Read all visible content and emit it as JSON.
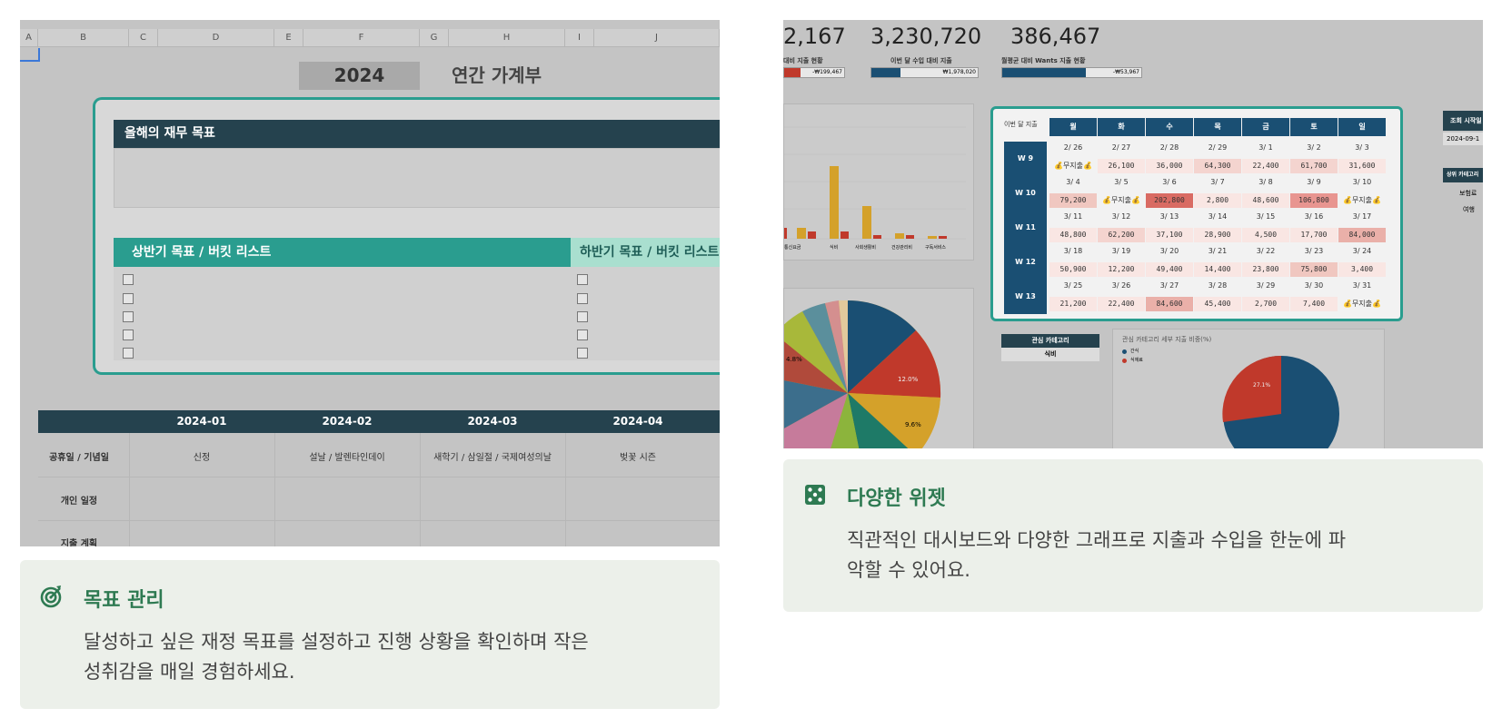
{
  "left_shot": {
    "columns": [
      "A",
      "B",
      "C",
      "D",
      "E",
      "F",
      "G",
      "H",
      "I",
      "J"
    ],
    "year": "2024",
    "book_title": "연간 가계부",
    "goal_header": "올해의 재무 목표",
    "first_half_header": "상반기 목표 / 버킷 리스트",
    "second_half_header": "하반기 목표 / 버킷 리스트",
    "months": [
      "2024-01",
      "2024-02",
      "2024-03",
      "2024-04"
    ],
    "row_labels": [
      "공휴일 / 기념일",
      "개인 일정",
      "지출 계획"
    ],
    "holidays": [
      "신정",
      "설날 / 발렌타인데이",
      "새학기 / 삼일절 / 국제여성의날",
      "벚꽃 시즌"
    ]
  },
  "left_caption": {
    "icon": "target-icon",
    "title": "목표 관리",
    "desc_line1": "달성하고 싶은 재정 목표를 설정하고 진행 상황을 확인하며 작은",
    "desc_line2": "성취감을 매일 경험하세요."
  },
  "right_shot": {
    "numbers": [
      "2,167",
      "3,230,720",
      "386,467"
    ],
    "labels": [
      "대비 지출 현황",
      "이번 달 수입 대비 지출",
      "월평균 대비 Wants 지출 현황"
    ],
    "bar_values": [
      "-₩199,467",
      "₩1,978,020",
      "-₩53,967"
    ],
    "bar_categories": [
      "통신요금",
      "식비",
      "사회생활비",
      "건강관리비",
      "구독서비스"
    ],
    "cal_corner": "이번 달 지출",
    "days": [
      "월",
      "화",
      "수",
      "목",
      "금",
      "토",
      "일"
    ],
    "weeks": [
      {
        "label": "W 9",
        "dates": [
          "2/ 26",
          "2/ 27",
          "2/ 28",
          "2/ 29",
          "3/ 1",
          "3/ 2",
          "3/ 3"
        ],
        "values": [
          "💰무지출💰",
          "26,100",
          "36,000",
          "64,300",
          "22,400",
          "61,700",
          "31,600"
        ]
      },
      {
        "label": "W 10",
        "dates": [
          "3/ 4",
          "3/ 5",
          "3/ 6",
          "3/ 7",
          "3/ 8",
          "3/ 9",
          "3/ 10"
        ],
        "values": [
          "79,200",
          "💰무지출💰",
          "202,800",
          "2,800",
          "48,600",
          "106,800",
          "💰무지출💰"
        ]
      },
      {
        "label": "W 11",
        "dates": [
          "3/ 11",
          "3/ 12",
          "3/ 13",
          "3/ 14",
          "3/ 15",
          "3/ 16",
          "3/ 17"
        ],
        "values": [
          "48,800",
          "62,200",
          "37,100",
          "28,900",
          "4,500",
          "17,700",
          "84,000"
        ]
      },
      {
        "label": "W 12",
        "dates": [
          "3/ 18",
          "3/ 19",
          "3/ 20",
          "3/ 21",
          "3/ 22",
          "3/ 23",
          "3/ 24"
        ],
        "values": [
          "50,900",
          "12,200",
          "49,400",
          "14,400",
          "23,800",
          "75,800",
          "3,400"
        ]
      },
      {
        "label": "W 13",
        "dates": [
          "3/ 25",
          "3/ 26",
          "3/ 27",
          "3/ 28",
          "3/ 29",
          "3/ 30",
          "3/ 31"
        ],
        "values": [
          "21,200",
          "22,400",
          "84,600",
          "45,400",
          "2,700",
          "7,400",
          "💰무지출💰"
        ]
      }
    ],
    "side_labels": [
      "조회 시작일",
      "2024-09-1",
      "상위 카테고리",
      "보험료",
      "여행"
    ],
    "pie_labels": [
      "4.8%",
      "12.0%",
      "9.6%"
    ],
    "interest_title": "관심 카테고리",
    "interest_value": "식비",
    "detail_title": "관심 카테고리 세부 지출 비중(%)",
    "detail_legend": [
      "간식",
      "식재료"
    ],
    "detail_pct": "27.1%"
  },
  "right_caption": {
    "icon": "dice-icon",
    "title": "다양한 위젯",
    "desc_line1": "직관적인 대시보드와 다양한 그래프로 지출과 수입을 한눈에 파",
    "desc_line2": "악할 수 있어요."
  },
  "colors": {
    "teal": "#2a9d8f",
    "navy": "#25424e",
    "blue": "#1a4f73",
    "caption_bg": "#ecf0ea",
    "caption_title": "#2e7a52"
  }
}
